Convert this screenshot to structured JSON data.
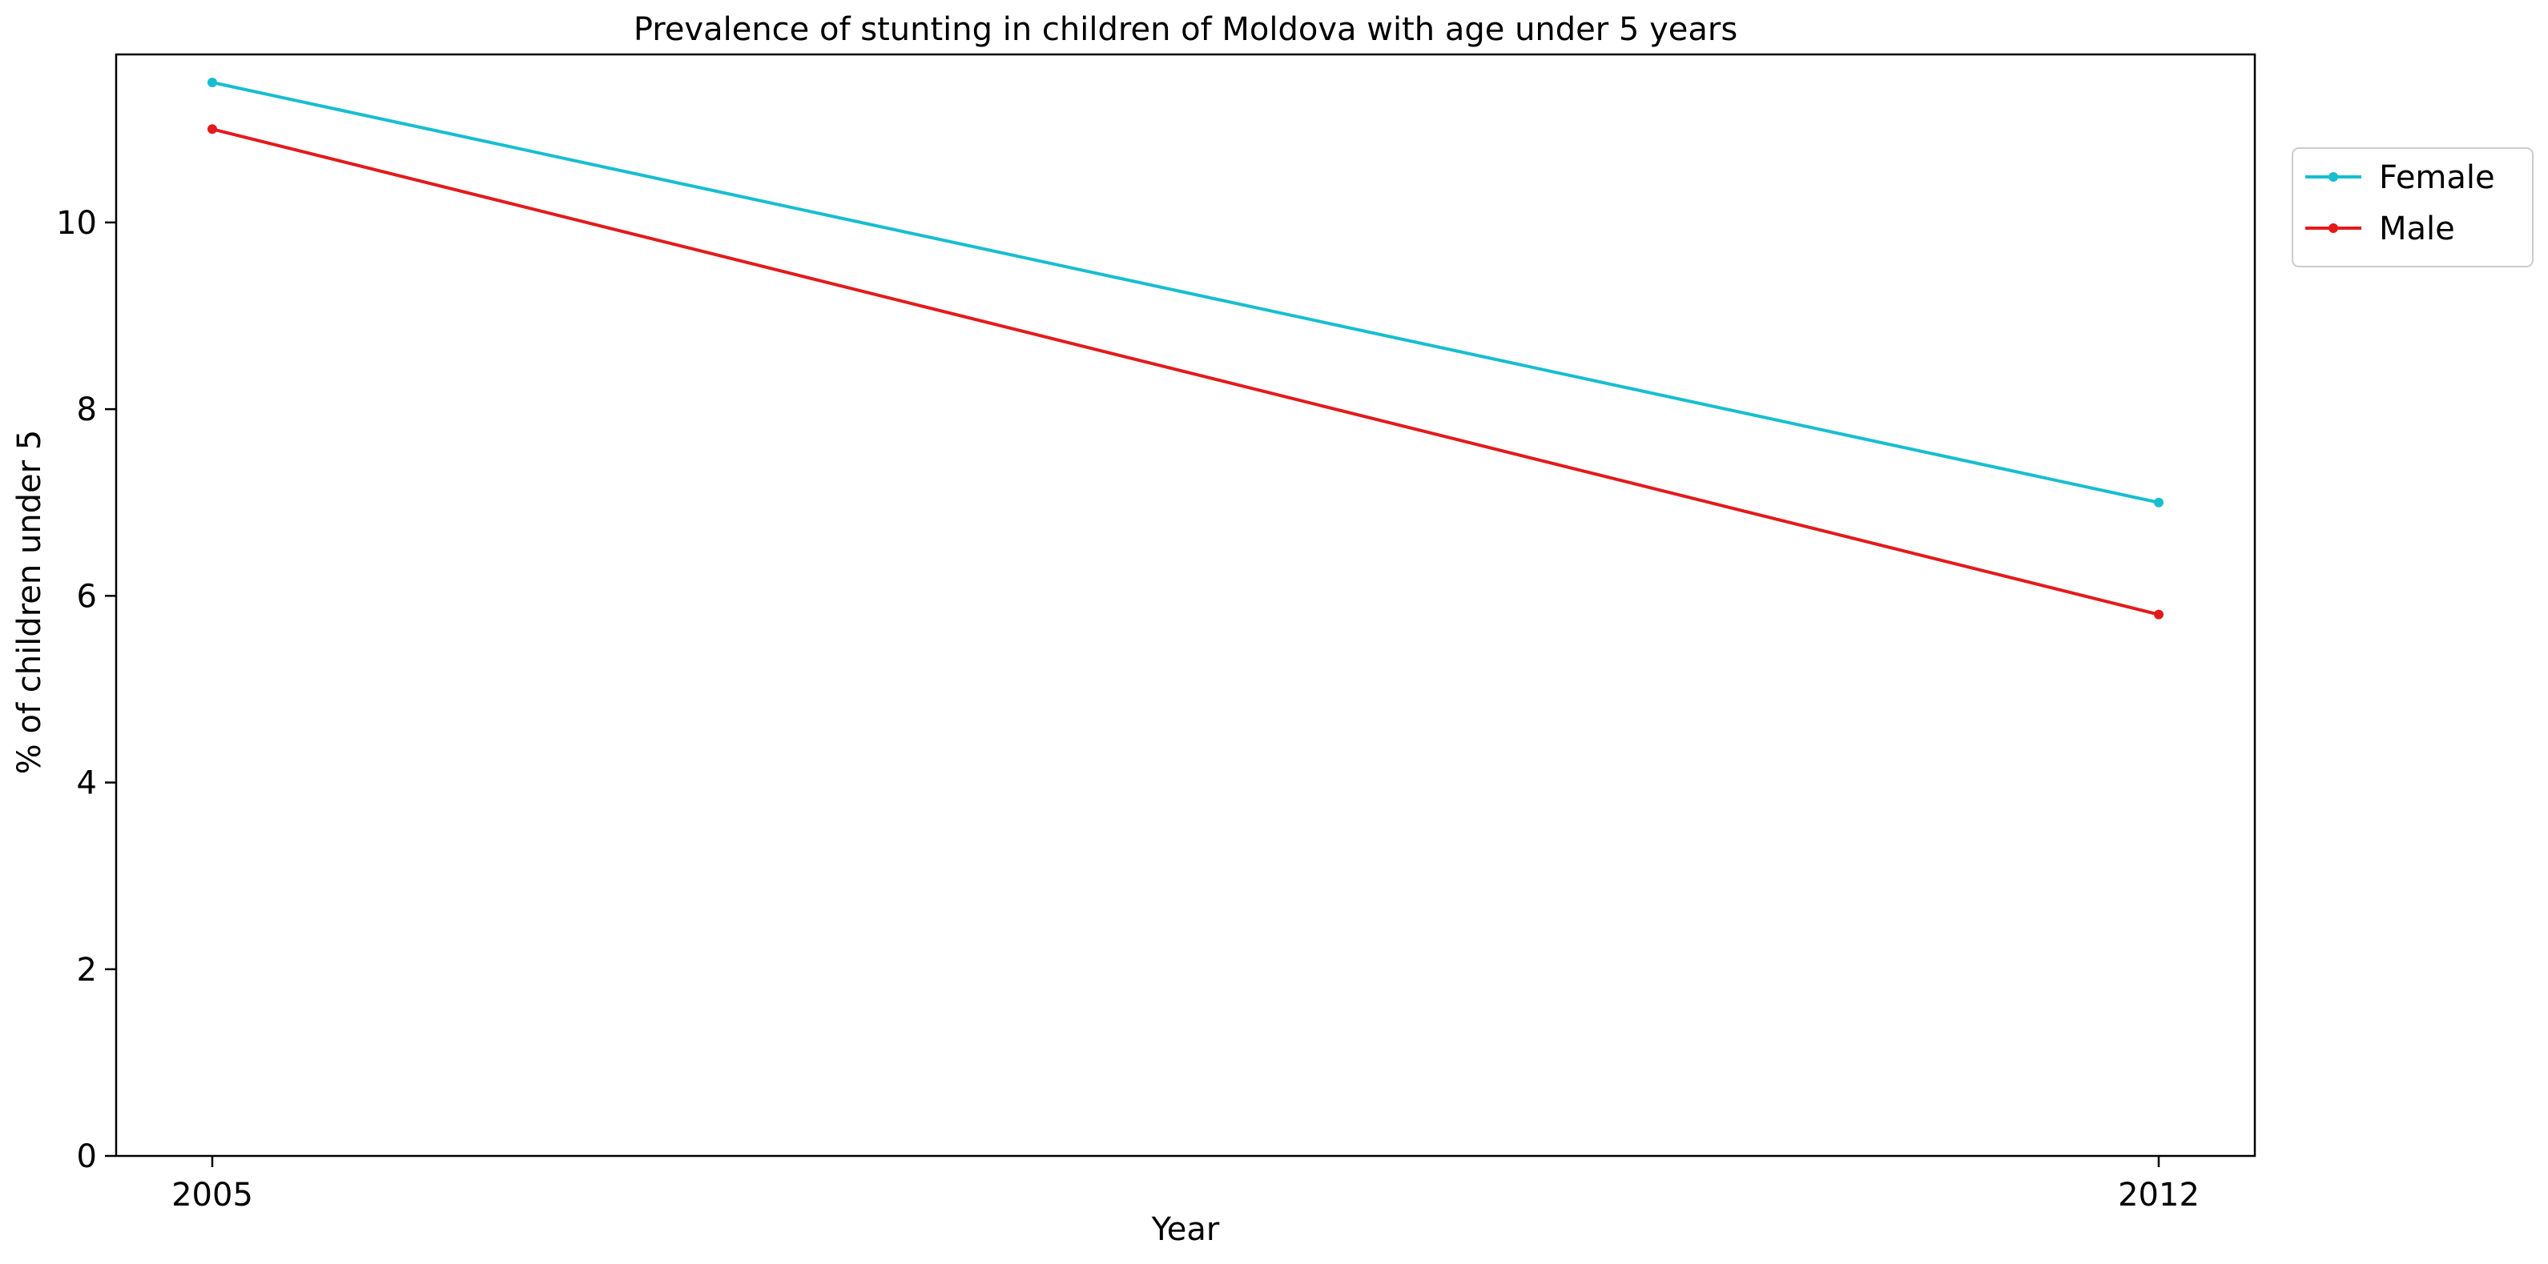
{
  "chart_data": {
    "type": "line",
    "title": "Prevalence of stunting in children of Moldova with age under 5 years",
    "xlabel": "Year",
    "ylabel": "% of children under 5",
    "x": [
      "2005",
      "2012"
    ],
    "ylim": [
      0,
      11.8
    ],
    "yticks": [
      0,
      2,
      4,
      6,
      8,
      10
    ],
    "xticks": [
      "2005",
      "2012"
    ],
    "grid": false,
    "legend": {
      "position": "upper-right-outside",
      "entries": [
        "Female",
        "Male"
      ]
    },
    "series": [
      {
        "name": "Female",
        "color": "#17becf",
        "values": [
          11.5,
          7.0
        ]
      },
      {
        "name": "Male",
        "color": "#e31a1c",
        "values": [
          11.0,
          5.8
        ]
      }
    ]
  }
}
